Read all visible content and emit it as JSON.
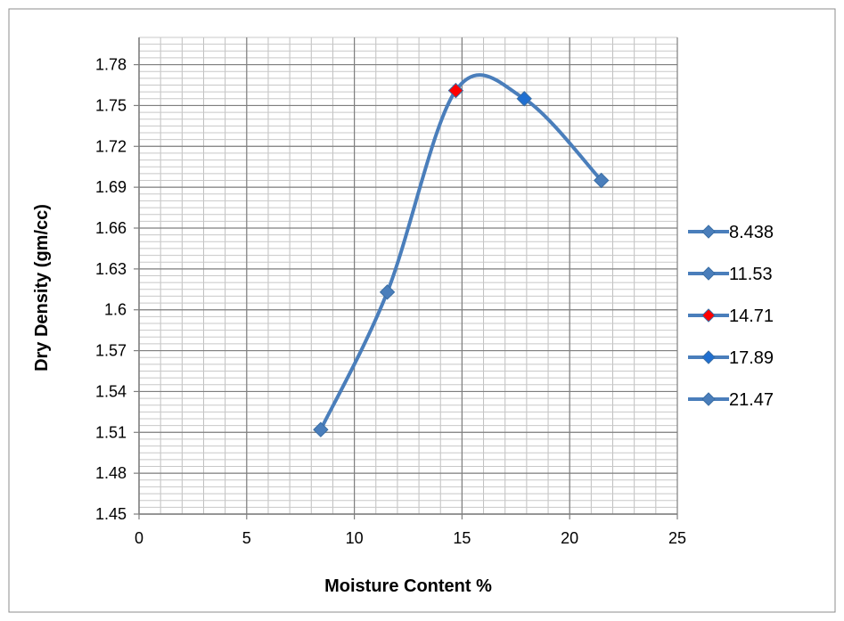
{
  "chart_data": {
    "type": "line",
    "title": "",
    "xlabel": "Moisture Content %",
    "ylabel": "Dry Density (gm/cc)",
    "xlim": [
      0,
      25
    ],
    "ylim": [
      1.45,
      1.8
    ],
    "x_ticks": [
      "0",
      "5",
      "10",
      "15",
      "20",
      "25"
    ],
    "y_ticks": [
      "1.45",
      "1.48",
      "1.51",
      "1.54",
      "1.57",
      "1.6",
      "1.63",
      "1.66",
      "1.69",
      "1.72",
      "1.75",
      "1.78"
    ],
    "grid": true,
    "smooth": true,
    "line_color": "#4a7ebb",
    "series": [
      {
        "name": "8.438",
        "x": 8.438,
        "y": 1.512,
        "marker_color": "#4a7ebb"
      },
      {
        "name": "11.53",
        "x": 11.53,
        "y": 1.613,
        "marker_color": "#4a7ebb"
      },
      {
        "name": "14.71",
        "x": 14.71,
        "y": 1.761,
        "marker_color": "#ff0000"
      },
      {
        "name": "17.89",
        "x": 17.89,
        "y": 1.755,
        "marker_color": "#1f6fd1"
      },
      {
        "name": "21.47",
        "x": 21.47,
        "y": 1.695,
        "marker_color": "#4a7ebb"
      }
    ],
    "legend_position": "right"
  }
}
